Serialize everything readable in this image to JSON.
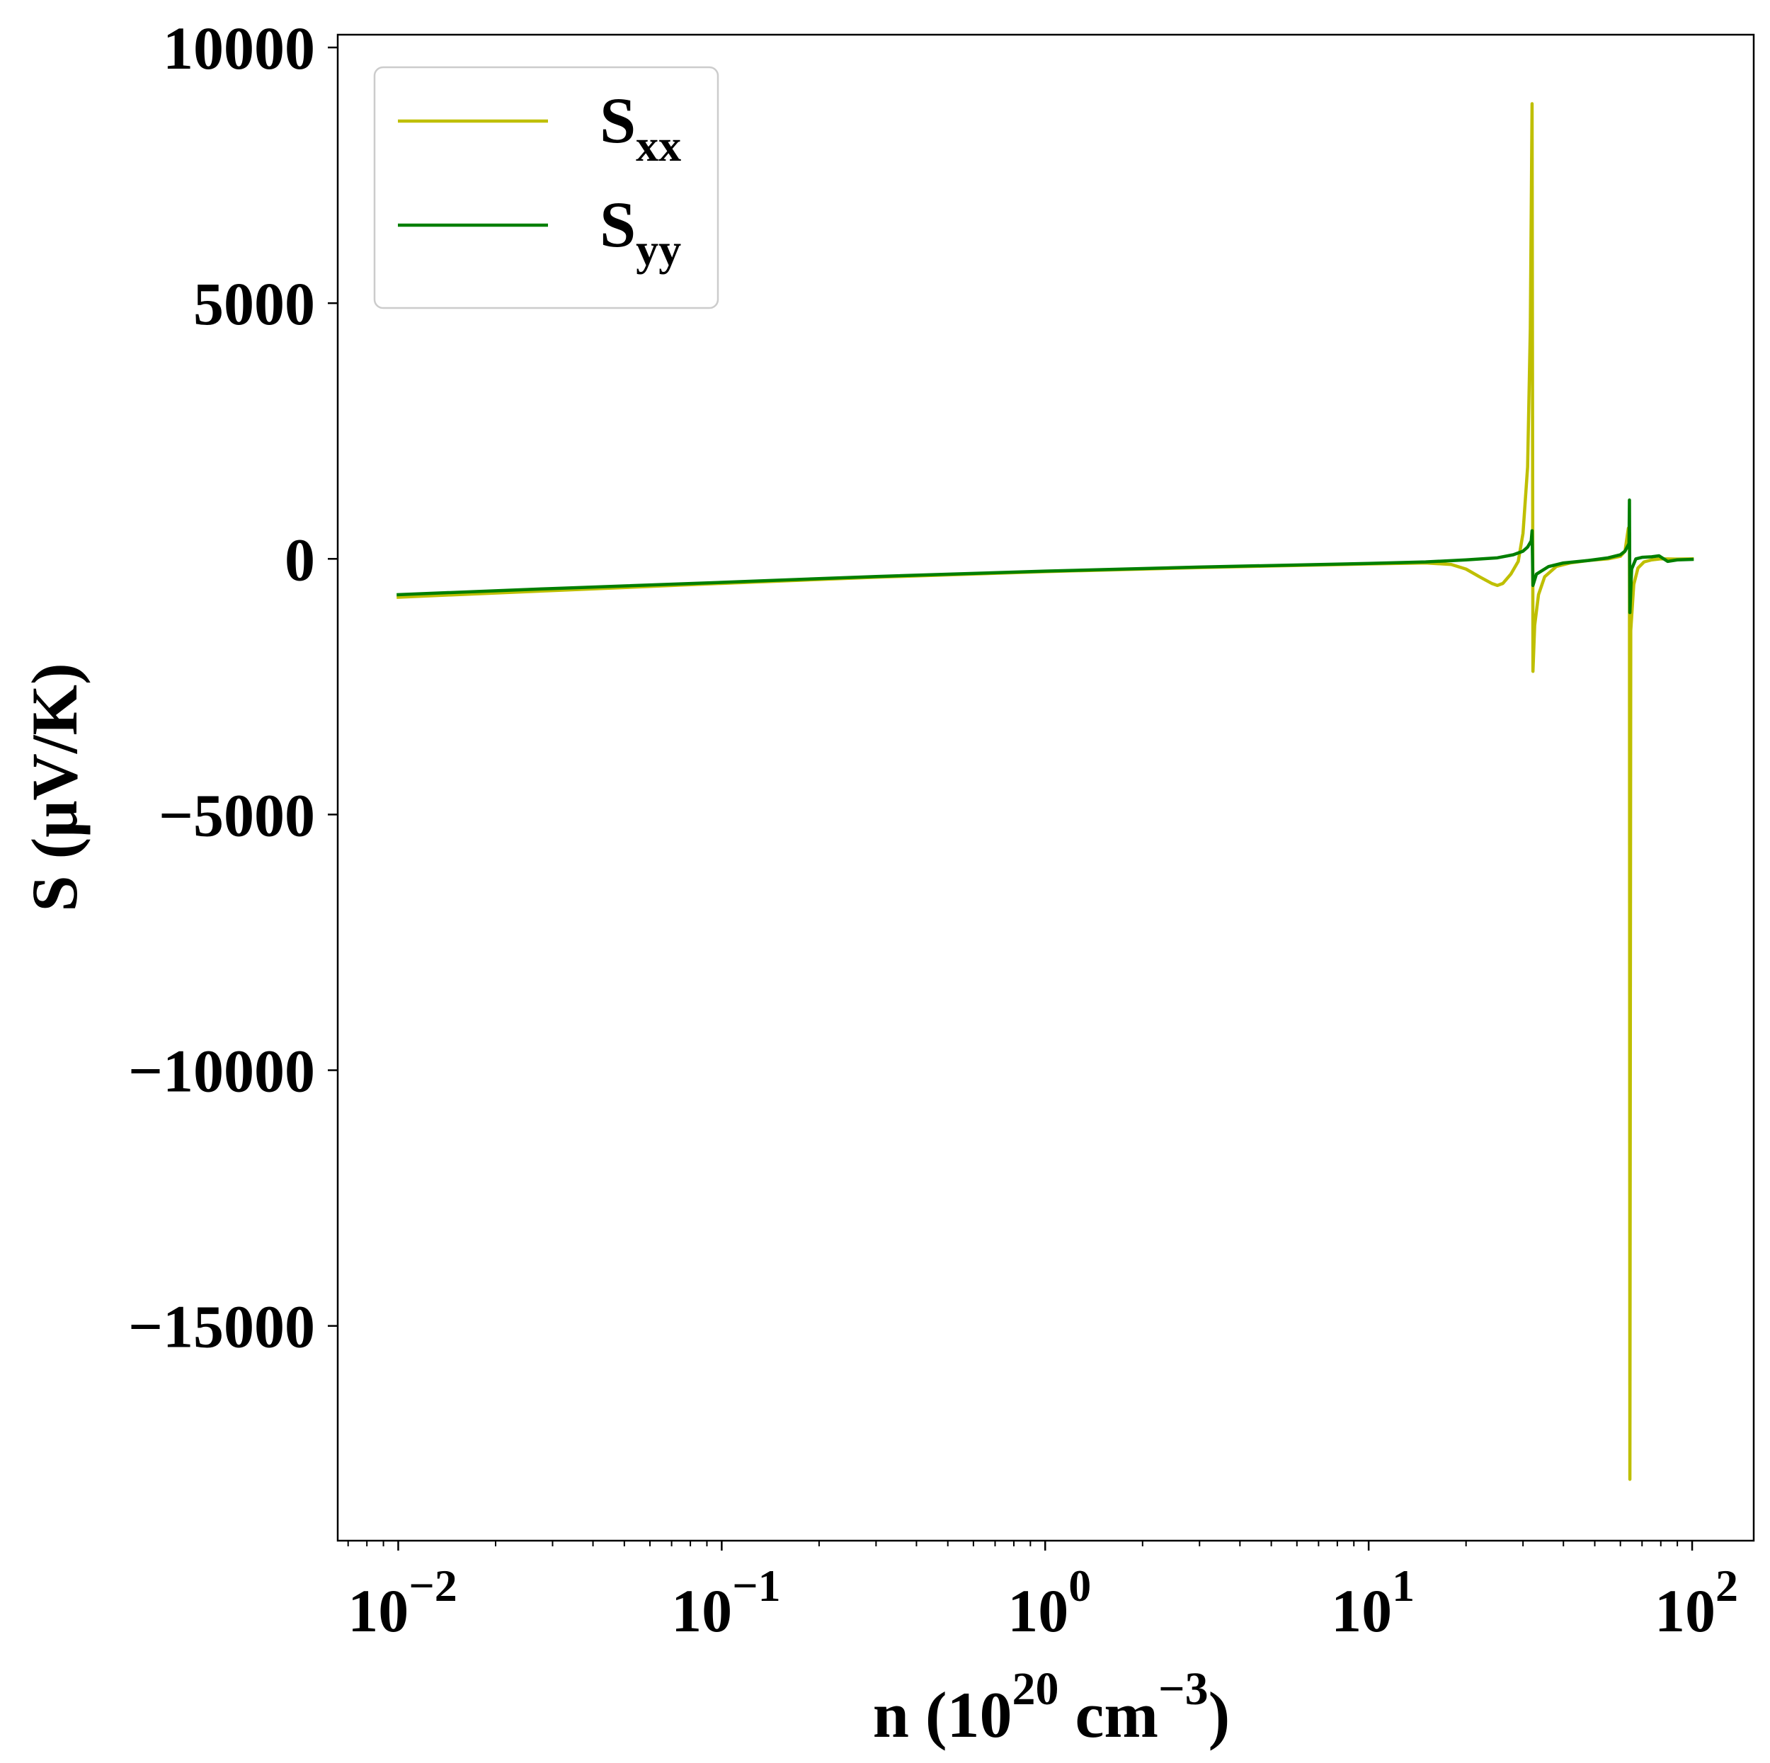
{
  "chart_data": {
    "type": "line",
    "xlabel": {
      "base": "n (10",
      "exp1": "20",
      "mid": " cm",
      "exp2": "−3",
      "end": ")"
    },
    "ylabel": "S (μV/K)",
    "x_scale": "log",
    "xlim": [
      0.0065,
      155
    ],
    "ylim": [
      -19200,
      10250
    ],
    "x_ticks": [
      {
        "value": 0.01,
        "base": "10",
        "exp": "−2"
      },
      {
        "value": 0.1,
        "base": "10",
        "exp": "−1"
      },
      {
        "value": 1,
        "base": "10",
        "exp": "0"
      },
      {
        "value": 10,
        "base": "10",
        "exp": "1"
      },
      {
        "value": 100,
        "base": "10",
        "exp": "2"
      }
    ],
    "y_ticks": [
      {
        "value": 10000,
        "label": "10000"
      },
      {
        "value": 5000,
        "label": "5000"
      },
      {
        "value": 0,
        "label": "0"
      },
      {
        "value": -5000,
        "label": "−5000"
      },
      {
        "value": -10000,
        "label": "−10000"
      },
      {
        "value": -15000,
        "label": "−15000"
      }
    ],
    "legend": {
      "location": "upper-left"
    },
    "series": [
      {
        "name": "S",
        "subscript": "xx",
        "color": "#bfbf00",
        "points": [
          [
            0.01,
            -750
          ],
          [
            0.03,
            -620
          ],
          [
            0.1,
            -480
          ],
          [
            0.3,
            -360
          ],
          [
            1,
            -250
          ],
          [
            3,
            -170
          ],
          [
            10,
            -100
          ],
          [
            15,
            -80
          ],
          [
            18,
            -110
          ],
          [
            20,
            -200
          ],
          [
            22,
            -350
          ],
          [
            24,
            -480
          ],
          [
            25,
            -520
          ],
          [
            26,
            -480
          ],
          [
            27.5,
            -300
          ],
          [
            29,
            -50
          ],
          [
            30,
            500
          ],
          [
            31,
            1800
          ],
          [
            31.6,
            4500
          ],
          [
            32,
            8900
          ],
          [
            32.2,
            -2200
          ],
          [
            32.6,
            -1300
          ],
          [
            33.5,
            -700
          ],
          [
            35,
            -350
          ],
          [
            38,
            -150
          ],
          [
            42,
            -80
          ],
          [
            48,
            -30
          ],
          [
            55,
            0
          ],
          [
            60,
            50
          ],
          [
            62,
            150
          ],
          [
            63.5,
            600
          ],
          [
            64,
            500
          ],
          [
            64.2,
            -18000
          ],
          [
            64.6,
            -1400
          ],
          [
            66,
            -500
          ],
          [
            68,
            -180
          ],
          [
            71,
            -60
          ],
          [
            75,
            -20
          ],
          [
            80,
            0
          ],
          [
            90,
            -5
          ],
          [
            100,
            0
          ]
        ]
      },
      {
        "name": "S",
        "subscript": "yy",
        "color": "#007f00",
        "points": [
          [
            0.01,
            -700
          ],
          [
            0.03,
            -580
          ],
          [
            0.1,
            -460
          ],
          [
            0.3,
            -345
          ],
          [
            1,
            -240
          ],
          [
            3,
            -160
          ],
          [
            10,
            -90
          ],
          [
            15,
            -60
          ],
          [
            20,
            -20
          ],
          [
            25,
            20
          ],
          [
            28,
            80
          ],
          [
            30,
            150
          ],
          [
            31,
            230
          ],
          [
            31.8,
            350
          ],
          [
            32,
            550
          ],
          [
            32.2,
            -520
          ],
          [
            33,
            -300
          ],
          [
            36,
            -150
          ],
          [
            40,
            -80
          ],
          [
            48,
            -30
          ],
          [
            55,
            20
          ],
          [
            60,
            80
          ],
          [
            62,
            150
          ],
          [
            63.8,
            300
          ],
          [
            64,
            1150
          ],
          [
            64.2,
            -1050
          ],
          [
            65,
            -200
          ],
          [
            67,
            0
          ],
          [
            70,
            30
          ],
          [
            75,
            40
          ],
          [
            79,
            60
          ],
          [
            84,
            -50
          ],
          [
            90,
            -20
          ],
          [
            100,
            -10
          ]
        ]
      }
    ]
  }
}
